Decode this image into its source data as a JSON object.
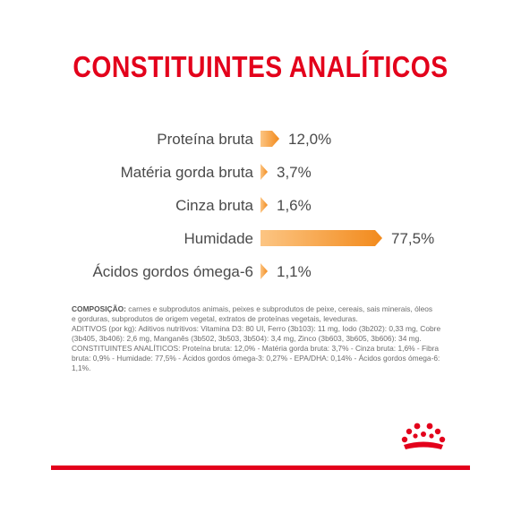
{
  "header": {
    "title": "CONSTITUINTES ANALÍTICOS"
  },
  "colors": {
    "brand_red": "#e3001b",
    "bar_light": "#fcc583",
    "bar_dark": "#f28a1c",
    "text_gray": "#4a4a4a"
  },
  "chart_data": {
    "type": "bar",
    "orientation": "horizontal",
    "title": "CONSTITUINTES ANALÍTICOS",
    "categories": [
      "Proteína bruta",
      "Matéria gorda bruta",
      "Cinza bruta",
      "Humidade",
      "Ácidos gordos ómega-6"
    ],
    "values": [
      12.0,
      3.7,
      1.6,
      77.5,
      1.1
    ],
    "value_labels": [
      "12,0%",
      "3,7%",
      "1,6%",
      "77,5%",
      "1,1%"
    ],
    "unit": "%",
    "xlim": [
      0,
      100
    ]
  },
  "composition": {
    "lead": "COMPOSIÇÃO:",
    "lines": [
      " carnes e subprodutos animais, peixes e subprodutos de peixe, cereais, sais minerais, óleos",
      "e gorduras, subprodutos de origem vegetal, extratos de proteínas vegetais, leveduras.",
      "ADITIVOS (por kg): Aditivos nutritivos: Vitamina D3: 80 UI, Ferro (3b103): 11 mg, Iodo (3b202): 0,33 mg, Cobre",
      "(3b405, 3b406): 2,6 mg, Manganês (3b502, 3b503, 3b504): 3,4 mg, Zinco (3b603, 3b605, 3b606): 34 mg.",
      "CONSTITUINTES ANALÍTICOS: Proteína bruta: 12,0% - Matéria gorda bruta: 3,7% - Cinza bruta: 1,6% - Fibra",
      "bruta: 0,9% - Humidade: 77,5% - Ácidos gordos ómega-3: 0,27% - EPA/DHA: 0,14% - Ácidos gordos ómega-6: 1,1%."
    ]
  },
  "logo": {
    "icon": "royal-canin-crown-icon"
  }
}
